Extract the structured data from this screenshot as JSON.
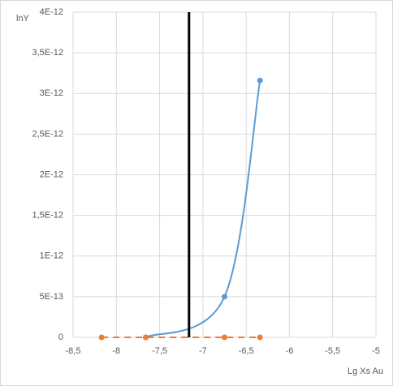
{
  "chart_data": {
    "type": "line",
    "xlabel": "Lg Xs Au",
    "ylabel": "lnY",
    "xlim": [
      -8.5,
      -5
    ],
    "xticks": [
      {
        "value": -8.5,
        "label": "-8,5"
      },
      -8,
      {
        "value": -7.5,
        "label": "-7,5"
      },
      -7,
      {
        "value": -6.5,
        "label": "-6,5"
      },
      -6,
      {
        "value": -5.5,
        "label": "-5,5"
      },
      -5
    ],
    "ylim": [
      0,
      4e-12
    ],
    "yticks": [
      0,
      {
        "value": 5e-13,
        "label": "5E-13"
      },
      {
        "value": 1e-12,
        "label": "1E-12"
      },
      {
        "value": 1.5e-12,
        "label": "1,5E-12"
      },
      {
        "value": 2e-12,
        "label": "2E-12"
      },
      {
        "value": 2.5e-12,
        "label": "2,5E-12"
      },
      {
        "value": 3e-12,
        "label": "3E-12"
      },
      {
        "value": 3.5e-12,
        "label": "3,5E-12"
      },
      {
        "value": 4e-12,
        "label": "4E-12"
      }
    ],
    "grid": true,
    "series": [
      {
        "color": "#5b9bd5",
        "smooth": true,
        "x": [
          -7.66,
          -6.75,
          -6.34
        ],
        "values": [
          0,
          5e-13,
          3.16e-12
        ]
      },
      {
        "color": "#ed7d31",
        "dashed": true,
        "x": [
          -8.17,
          -7.66,
          -6.75,
          -6.34
        ],
        "values": [
          0,
          0,
          0,
          0
        ]
      }
    ],
    "vline": {
      "x": -7.16,
      "color": "#000000"
    }
  }
}
